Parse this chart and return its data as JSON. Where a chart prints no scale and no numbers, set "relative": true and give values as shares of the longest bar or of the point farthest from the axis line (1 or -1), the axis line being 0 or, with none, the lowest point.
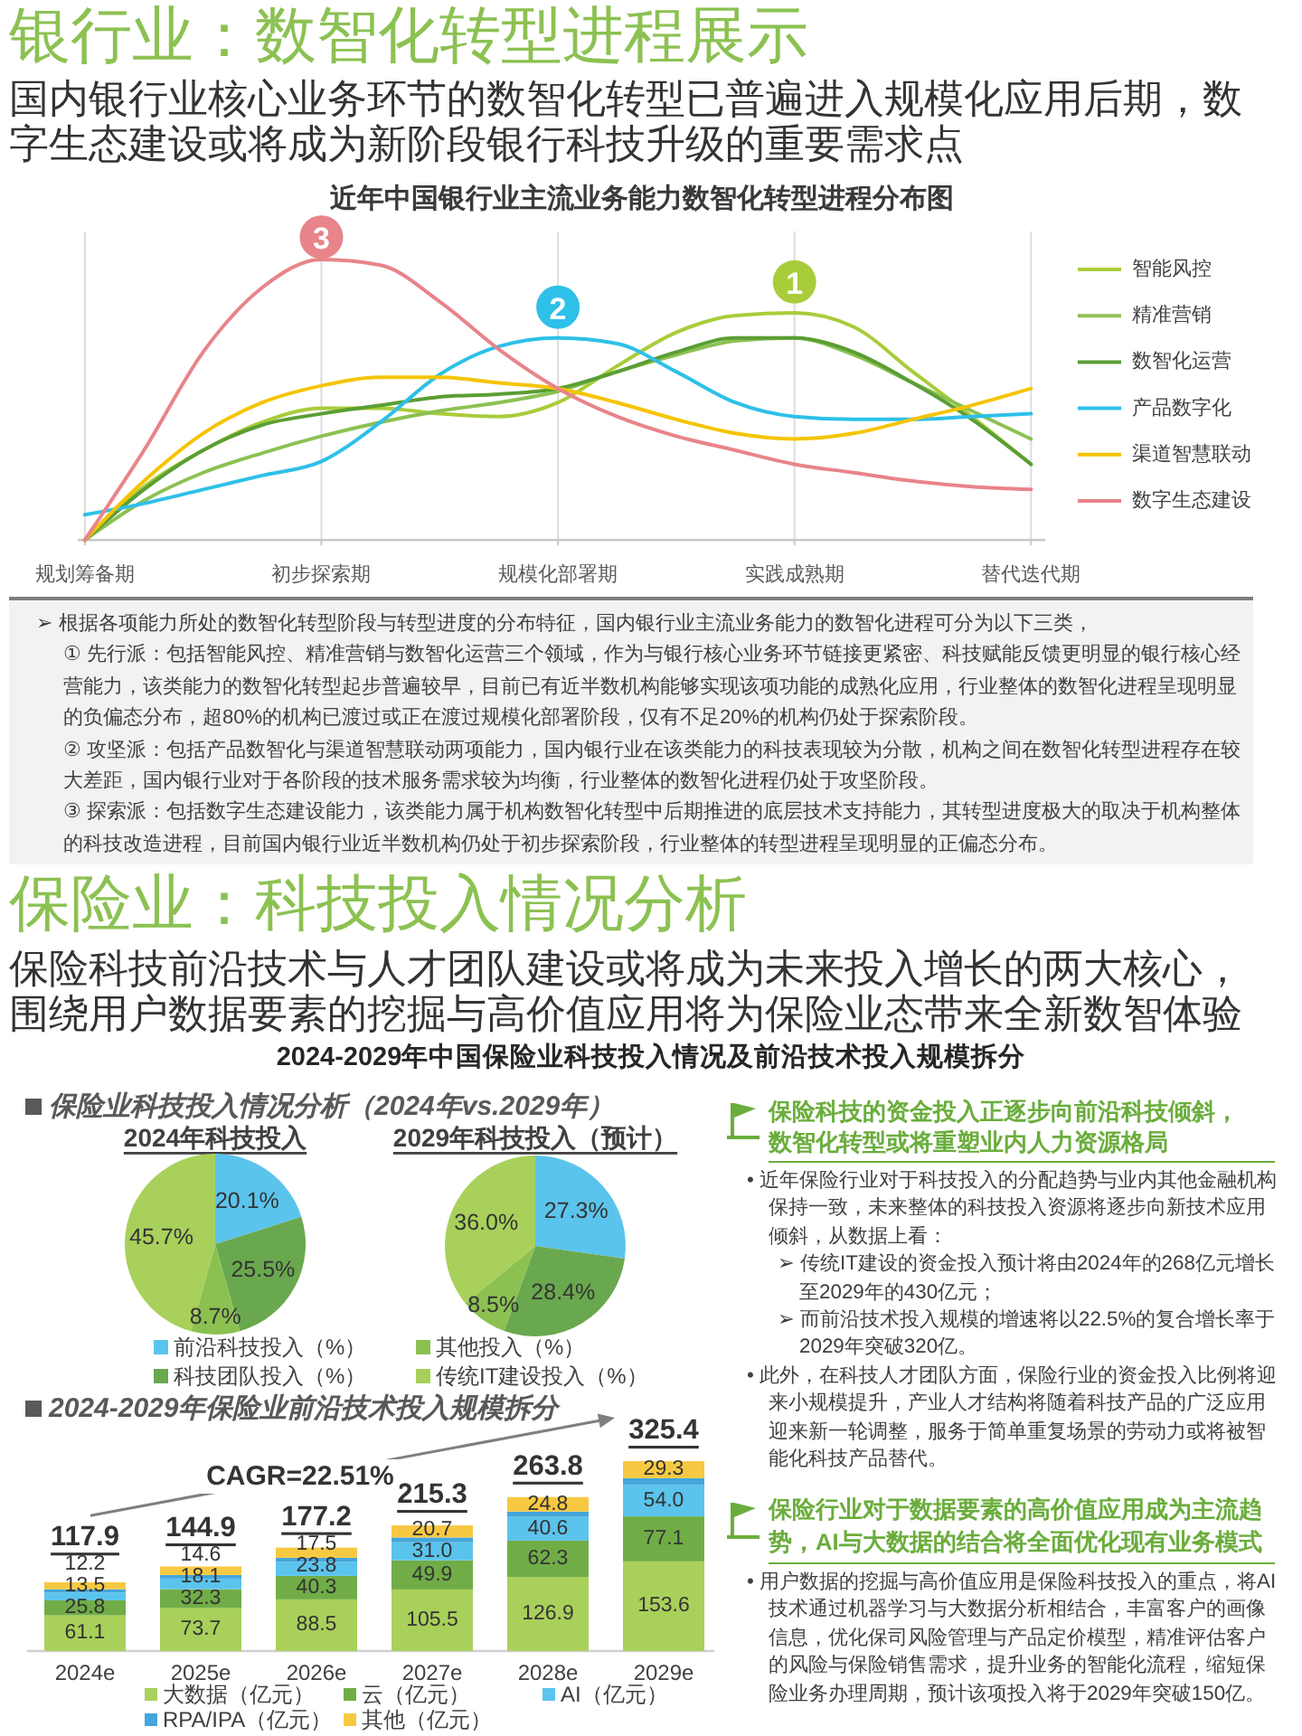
{
  "chart_data": [
    {
      "type": "other",
      "title": "银行业：数智化转型进程展示",
      "subtitle": "国内银行业核心业务环节的数智化转型已普遍进入规模化应用后期，数字生态建设或将成为新阶段银行科技升级的重要需求点"
    },
    {
      "type": "line",
      "title": "近年中国银行业主流业务能力数智化转型进程分布图",
      "relative": true,
      "categories": [
        "规划筹备期",
        null,
        null,
        null,
        "初步探索期",
        null,
        null,
        null,
        "规模化部署期",
        null,
        null,
        null,
        "实践成熟期",
        null,
        null,
        null,
        "替代迭代期"
      ],
      "grid": "x",
      "legend": "right",
      "series": [
        {
          "name": "智能风控",
          "color": "#a9cc3a",
          "values": [
            0,
            0.19,
            0.32,
            0.42,
            0.47,
            0.47,
            0.45,
            0.44,
            0.49,
            0.62,
            0.74,
            0.8,
            0.81,
            0.76,
            0.6,
            0.44,
            0.27
          ]
        },
        {
          "name": "精准营销",
          "color": "#8cc152",
          "values": [
            0,
            0.14,
            0.24,
            0.31,
            0.37,
            0.42,
            0.46,
            0.49,
            0.53,
            0.6,
            0.66,
            0.71,
            0.72,
            0.66,
            0.56,
            0.46,
            0.36
          ]
        },
        {
          "name": "数智化运营",
          "color": "#5a9e34",
          "values": [
            0,
            0.18,
            0.32,
            0.41,
            0.45,
            0.48,
            0.51,
            0.52,
            0.54,
            0.6,
            0.67,
            0.72,
            0.72,
            0.67,
            0.56,
            0.43,
            0.27
          ]
        },
        {
          "name": "产品数字化",
          "color": "#2ec0e8",
          "values": [
            0.09,
            0.13,
            0.18,
            0.23,
            0.28,
            0.42,
            0.59,
            0.69,
            0.72,
            0.7,
            0.6,
            0.49,
            0.44,
            0.43,
            0.43,
            0.44,
            0.45
          ]
        },
        {
          "name": "渠道智慧联动",
          "color": "#f5c400",
          "values": [
            0,
            0.21,
            0.38,
            0.49,
            0.55,
            0.58,
            0.58,
            0.56,
            0.54,
            0.49,
            0.43,
            0.38,
            0.36,
            0.38,
            0.43,
            0.48,
            0.54
          ]
        },
        {
          "name": "数字生态建设",
          "color": "#e8848a",
          "values": [
            0,
            0.32,
            0.67,
            0.9,
            1,
            0.98,
            0.85,
            0.68,
            0.54,
            0.44,
            0.37,
            0.32,
            0.27,
            0.24,
            0.21,
            0.19,
            0.18
          ]
        }
      ],
      "annotations": [
        {
          "text": "3",
          "x": "初步探索期",
          "y": 1.08
        },
        {
          "text": "2",
          "x": "规模化部署期",
          "y": 0.83
        },
        {
          "text": "1",
          "x": "实践成熟期",
          "y": 0.92
        },
        "➢ 根据各项能力所处的数智化转型阶段与转型进度的分布特征，国内银行业主流业务能力的数智化进程可分为以下三类，",
        "① 先行派：包括智能风控、精准营销与数智化运营三个领域，作为与银行核心业务环节链接更紧密、科技赋能反馈更明显的银行核心经营能力，该类能力的数智化转型起步普遍较早，目前已有近半数机构能够实现该项功能的成熟化应用，行业整体的数智化进程呈现明显的负偏态分布，超80%的机构已渡过或正在渡过规模化部署阶段，仅有不足20%的机构仍处于探索阶段。",
        "② 攻坚派：包括产品数智化与渠道智慧联动两项能力，国内银行业在该类能力的科技表现较为分散，机构之间在数智化转型进程存在较大差距，国内银行业对于各阶段的技术服务需求较为均衡，行业整体的数智化进程仍处于攻坚阶段。",
        "③ 探索派：包括数字生态建设能力，该类能力属于机构数智化转型中后期推进的底层技术支持能力，其转型进度极大的取决于机构整体的科技改造进程，目前国内银行业近半数机构仍处于初步探索阶段，行业整体的转型进程呈现明显的正偏态分布。"
      ]
    },
    {
      "type": "other",
      "title": "保险业：科技投入情况分析",
      "subtitle": "保险科技前沿技术与人才团队建设或将成为未来投入增长的两大核心，围绕用户数据要素的挖掘与高价值应用将为保险业态带来全新数智体验",
      "annotations": [
        "2024-2029年中国保险业科技投入情况及前沿技术投入规模拆分"
      ]
    },
    {
      "type": "pie",
      "title": "2024年科技投入",
      "categories": [
        "前沿科技投入（%）",
        "科技团队投入（%）",
        "其他投入（%）",
        "传统IT建设投入（%）"
      ],
      "values": [
        20.1,
        25.5,
        8.7,
        45.7
      ],
      "colors": [
        "#5bc4ec",
        "#6aa84f",
        "#8cc152",
        "#a9d05a"
      ],
      "value_labels": [
        "20.1%",
        "25.5%",
        "8.7%",
        "45.7%"
      ],
      "legend": "bottom",
      "annotations": [
        "保险业科技投入情况分析（2024年vs.2029年）"
      ]
    },
    {
      "type": "pie",
      "title": "2029年科技投入（预计）",
      "categories": [
        null,
        null,
        null,
        null
      ],
      "values": [
        27.3,
        28.4,
        8.5,
        36.0
      ],
      "colors": [
        "#5bc4ec",
        "#6aa84f",
        "#8cc152",
        "#a9d05a"
      ],
      "value_labels": [
        "27.3%",
        "28.4%",
        "8.5%",
        "36.0%"
      ]
    },
    {
      "type": "bar",
      "title": "2024-2029年保险业前沿技术投入规模拆分",
      "stacked": true,
      "categories": [
        "2024e",
        "2025e",
        "2026e",
        "2027e",
        "2028e",
        "2029e"
      ],
      "legend": "bottom",
      "series": [
        {
          "name": "大数据（亿元）",
          "color": "#a9d05a",
          "values": [
            61.1,
            73.7,
            88.5,
            105.5,
            126.9,
            153.6
          ],
          "value_labels": [
            "61.1",
            "73.7",
            "88.5",
            "105.5",
            "126.9",
            "153.6"
          ]
        },
        {
          "name": "云（亿元）",
          "color": "#70ad47",
          "values": [
            25.8,
            32.3,
            40.3,
            49.9,
            62.3,
            77.1
          ],
          "value_labels": [
            "25.8",
            "32.3",
            "40.3",
            "49.9",
            "62.3",
            "77.1"
          ]
        },
        {
          "name": "AI（亿元）",
          "color": "#5bc4ec",
          "values": [
            13.5,
            18.1,
            23.8,
            31.0,
            40.6,
            54.0
          ],
          "value_labels": [
            "13.5",
            "18.1",
            "23.8",
            "31.0",
            "40.6",
            "54.0"
          ]
        },
        {
          "name": "RPA/IPA（亿元）",
          "color": "#44a6dc",
          "values": [
            5.3,
            6.2,
            7.1,
            8.2,
            9.2,
            11.4
          ],
          "value_labels": [
            null,
            null,
            null,
            null,
            null,
            null
          ]
        },
        {
          "name": "其他（亿元）",
          "color": "#f7c942",
          "values": [
            12.2,
            14.6,
            17.5,
            20.7,
            24.8,
            29.3
          ],
          "value_labels": [
            "12.2",
            "14.6",
            "17.5",
            "20.7",
            "24.8",
            "29.3"
          ]
        }
      ],
      "totals": [
        "117.9",
        "144.9",
        "177.2",
        "215.3",
        "263.8",
        "325.4"
      ],
      "annotations": [
        "CAGR=22.51%"
      ]
    },
    {
      "type": "other",
      "title": "保险科技的资金投入正逐步向前沿科技倾斜，数智化转型或将重塑业内人力资源格局",
      "annotations": [
        "• 近年保险行业对于科技投入的分配趋势与业内其他金融机构保持一致，未来整体的科技投入资源将逐步向新技术应用倾斜，从数据上看：",
        "➢ 传统IT建设的资金投入预计将由2024年的268亿元增长至2029年的430亿元；",
        "➢ 而前沿技术投入规模的增速将以22.5%的复合增长率于2029年突破320亿。",
        "• 此外，在科技人才团队方面，保险行业的资金投入比例将迎来小规模提升，产业人才结构将随着科技产品的广泛应用迎来新一轮调整，服务于简单重复场景的劳动力或将被智能化科技产品替代。"
      ]
    },
    {
      "type": "other",
      "title": "保险行业对于数据要素的高价值应用成为主流趋势，AI与大数据的结合将全面优化现有业务模式",
      "annotations": [
        "• 用户数据的挖掘与高价值应用是保险科技投入的重点，将AI技术通过机器学习与大数据分析相结合，丰富客户的画像信息，优化保司风险管理与产品定价模型，精准评估客户的风险与保险销售需求，提升业务的智能化流程，缩短保险业务办理周期，预计该项投入将于2029年突破150亿。"
      ]
    }
  ]
}
